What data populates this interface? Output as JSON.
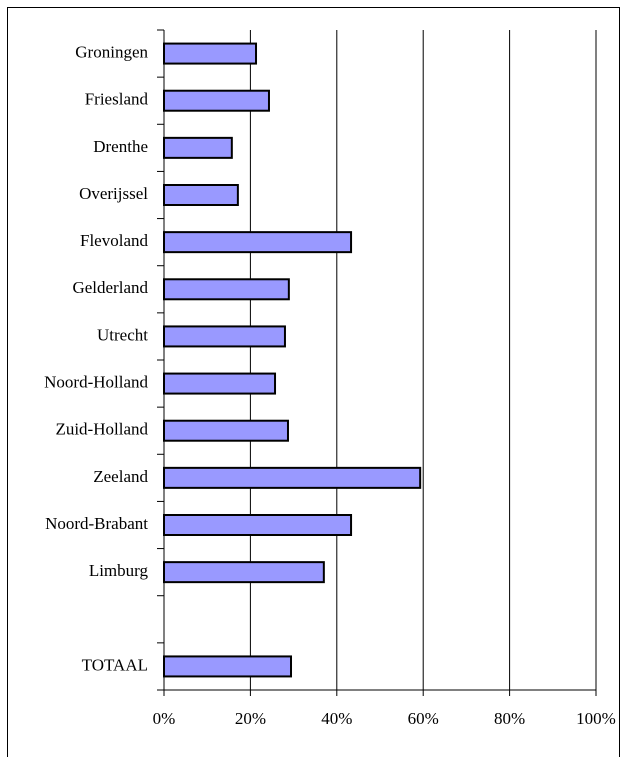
{
  "chart_data": {
    "type": "bar",
    "orientation": "horizontal",
    "categories": [
      "Groningen",
      "Friesland",
      "Drenthe",
      "Overijssel",
      "Flevoland",
      "Gelderland",
      "Utrecht",
      "Noord-Holland",
      "Zuid-Holland",
      "Zeeland",
      "Noord-Brabant",
      "Limburg",
      null,
      "TOTAAL"
    ],
    "values": [
      21.3,
      24.3,
      15.7,
      17.1,
      43.3,
      28.9,
      28,
      25.7,
      28.7,
      59.3,
      43.3,
      37,
      null,
      29.4
    ],
    "color": "#9999ff",
    "xlim": [
      0,
      100
    ],
    "xticks": [
      {
        "value": 0,
        "label": "0%"
      },
      {
        "value": 20,
        "label": "20%"
      },
      {
        "value": 40,
        "label": "40%"
      },
      {
        "value": 60,
        "label": "60%"
      },
      {
        "value": 80,
        "label": "80%"
      },
      {
        "value": 100,
        "label": "100%"
      }
    ],
    "grid": true
  }
}
